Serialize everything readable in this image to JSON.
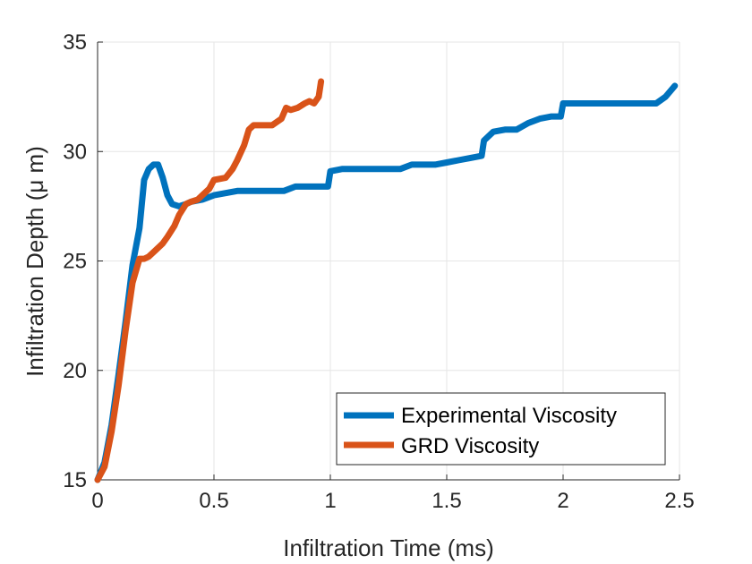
{
  "chart_data": {
    "type": "line",
    "title": "",
    "xlabel": "Infiltration Time (ms)",
    "ylabel": "Infiltration Depth (μ m)",
    "xlim": [
      0,
      2.5
    ],
    "ylim": [
      15,
      35
    ],
    "xticks": [
      0,
      0.5,
      1,
      1.5,
      2,
      2.5
    ],
    "yticks": [
      15,
      20,
      25,
      30,
      35
    ],
    "xtick_labels": [
      "0",
      "0.5",
      "1",
      "1.5",
      "2",
      "2.5"
    ],
    "ytick_labels": [
      "15",
      "20",
      "25",
      "30",
      "35"
    ],
    "grid": true,
    "legend_position": "bottom-right",
    "series": [
      {
        "name": "Experimental Viscosity",
        "color": "#0072BD",
        "x": [
          0,
          0.03,
          0.06,
          0.09,
          0.12,
          0.15,
          0.18,
          0.2,
          0.22,
          0.24,
          0.26,
          0.28,
          0.3,
          0.32,
          0.35,
          0.38,
          0.4,
          0.45,
          0.5,
          0.55,
          0.6,
          0.65,
          0.7,
          0.8,
          0.85,
          0.9,
          0.95,
          0.99,
          1.0,
          1.05,
          1.1,
          1.2,
          1.3,
          1.35,
          1.4,
          1.45,
          1.5,
          1.55,
          1.6,
          1.65,
          1.66,
          1.7,
          1.75,
          1.8,
          1.85,
          1.9,
          1.95,
          1.99,
          2.0,
          2.1,
          2.2,
          2.3,
          2.4,
          2.44,
          2.48
        ],
        "values": [
          15,
          15.8,
          17.5,
          19.8,
          22.2,
          24.8,
          26.5,
          28.7,
          29.2,
          29.4,
          29.4,
          28.8,
          28.0,
          27.6,
          27.5,
          27.6,
          27.7,
          27.8,
          28.0,
          28.1,
          28.2,
          28.2,
          28.2,
          28.2,
          28.4,
          28.4,
          28.4,
          28.4,
          29.1,
          29.2,
          29.2,
          29.2,
          29.2,
          29.4,
          29.4,
          29.4,
          29.5,
          29.6,
          29.7,
          29.8,
          30.5,
          30.9,
          31.0,
          31.0,
          31.3,
          31.5,
          31.6,
          31.6,
          32.2,
          32.2,
          32.2,
          32.2,
          32.2,
          32.5,
          33.0
        ]
      },
      {
        "name": "GRD Viscosity",
        "color": "#D95319",
        "x": [
          0,
          0.03,
          0.06,
          0.09,
          0.12,
          0.15,
          0.18,
          0.2,
          0.22,
          0.25,
          0.28,
          0.3,
          0.33,
          0.35,
          0.38,
          0.4,
          0.43,
          0.45,
          0.48,
          0.5,
          0.55,
          0.58,
          0.6,
          0.63,
          0.65,
          0.67,
          0.7,
          0.75,
          0.79,
          0.81,
          0.83,
          0.86,
          0.89,
          0.91,
          0.93,
          0.95,
          0.96
        ],
        "values": [
          15,
          15.6,
          17.2,
          19.3,
          21.8,
          24.0,
          25.1,
          25.1,
          25.2,
          25.5,
          25.8,
          26.1,
          26.6,
          27.1,
          27.6,
          27.7,
          27.8,
          28.0,
          28.3,
          28.7,
          28.8,
          29.2,
          29.6,
          30.3,
          31.0,
          31.2,
          31.2,
          31.2,
          31.5,
          32.0,
          31.9,
          32.0,
          32.2,
          32.3,
          32.2,
          32.5,
          33.2
        ]
      }
    ]
  }
}
